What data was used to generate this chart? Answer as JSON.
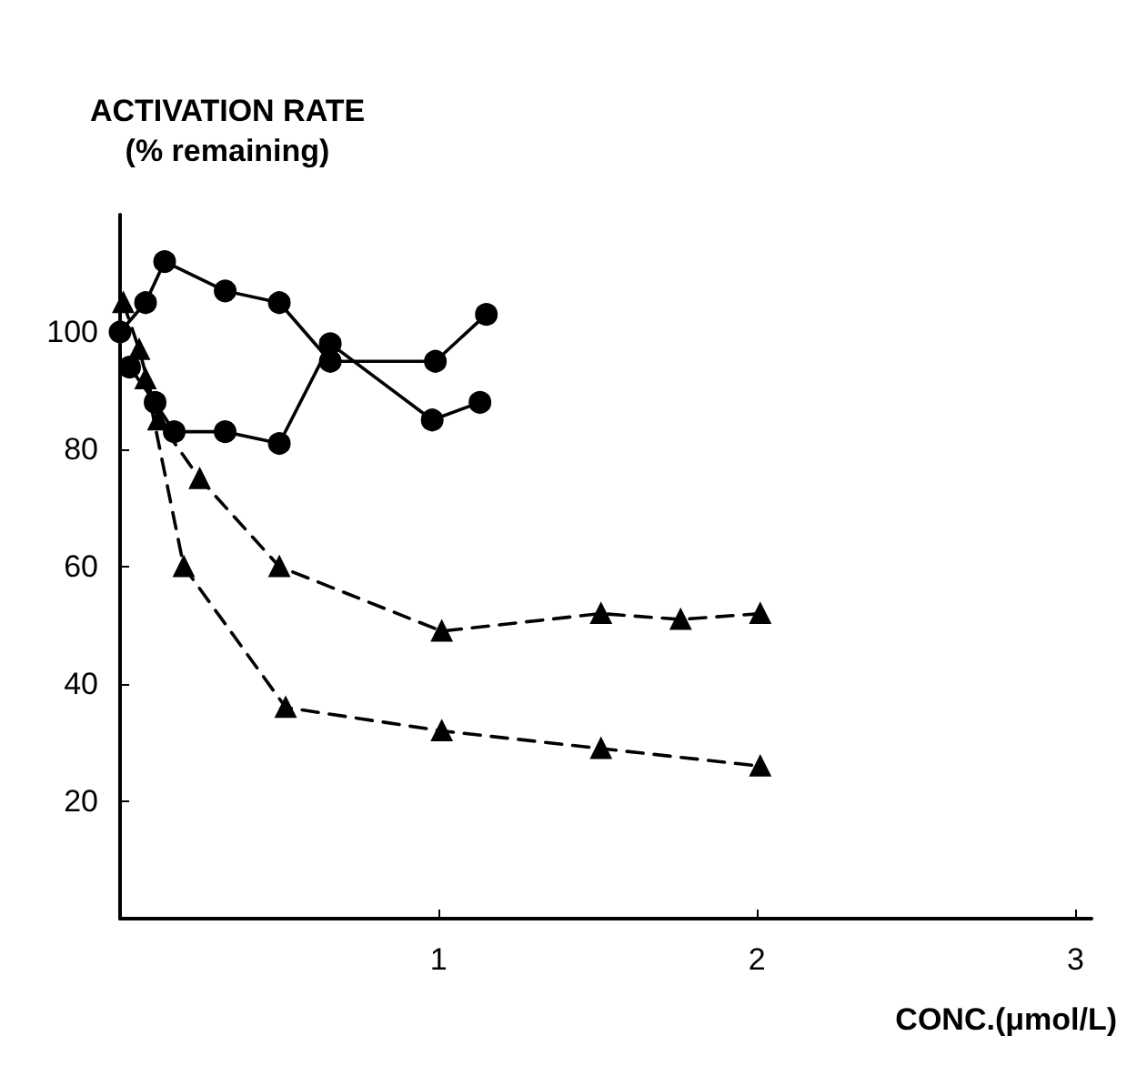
{
  "chart_data": {
    "type": "line",
    "ylabel": "ACTIVATION RATE\n(% remaining)",
    "xlabel": "CONC.(μmol/L)",
    "xlim": [
      0,
      3.05
    ],
    "xticks": [
      1,
      2,
      3
    ],
    "ylim": [
      0,
      120
    ],
    "yticks": [
      20,
      40,
      60,
      80,
      100
    ],
    "grid": false,
    "series": [
      {
        "color": "#000000",
        "marker": "circle",
        "line_style": "solid",
        "x": [
          0.0,
          0.08,
          0.14,
          0.33,
          0.5,
          0.66,
          0.99,
          1.15
        ],
        "values": [
          100,
          105,
          112,
          107,
          105,
          95,
          95,
          103
        ]
      },
      {
        "color": "#000000",
        "marker": "circle",
        "line_style": "solid",
        "x": [
          0.03,
          0.11,
          0.17,
          0.33,
          0.5,
          0.66,
          0.98,
          1.13
        ],
        "values": [
          94,
          88,
          83,
          83,
          81,
          98,
          85,
          88
        ]
      },
      {
        "color": "#000000",
        "marker": "triangle",
        "line_style": "dashed",
        "x": [
          0.01,
          0.06,
          0.12,
          0.25,
          0.5,
          1.01,
          1.51,
          1.76,
          2.01
        ],
        "values": [
          105,
          97,
          85,
          75,
          60,
          49,
          52,
          51,
          52
        ]
      },
      {
        "color": "#000000",
        "marker": "triangle",
        "line_style": "dashed",
        "x": [
          0.08,
          0.2,
          0.52,
          1.01,
          1.51,
          2.01
        ],
        "values": [
          92,
          60,
          36,
          32,
          29,
          26
        ]
      }
    ]
  }
}
